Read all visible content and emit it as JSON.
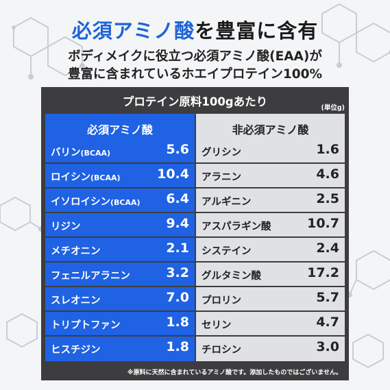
{
  "headline": {
    "accent": "必須アミノ酸",
    "rest": "を豊富に含有"
  },
  "subline_1": "ボディメイクに役立つ必須アミノ酸(EAA)が",
  "subline_2": "豊富に含まれているホエイプロテイン100%",
  "panel": {
    "title": "プロテイン原料100gあたり",
    "unit": "(単位g)",
    "footnote": "※原料に天然に含まれているアミノ酸です。添加したものではございません。"
  },
  "essential": {
    "heading": "必須アミノ酸",
    "rows": [
      {
        "name": "バリン",
        "suffix": "(BCAA)",
        "value": "5.6"
      },
      {
        "name": "ロイシン",
        "suffix": "(BCAA)",
        "value": "10.4"
      },
      {
        "name": "イソロイシン",
        "suffix": "(BCAA)",
        "value": "6.4"
      },
      {
        "name": "リジン",
        "suffix": "",
        "value": "9.4"
      },
      {
        "name": "メチオニン",
        "suffix": "",
        "value": "2.1"
      },
      {
        "name": "フェニルアラニン",
        "suffix": "",
        "value": "3.2"
      },
      {
        "name": "スレオニン",
        "suffix": "",
        "value": "7.0"
      },
      {
        "name": "トリプトファン",
        "suffix": "",
        "value": "1.8"
      },
      {
        "name": "ヒスチジン",
        "suffix": "",
        "value": "1.8"
      }
    ]
  },
  "nonessential": {
    "heading": "非必須アミノ酸",
    "rows": [
      {
        "name": "グリシン",
        "value": "1.6"
      },
      {
        "name": "アラニン",
        "value": "4.6"
      },
      {
        "name": "アルギニン",
        "value": "2.5"
      },
      {
        "name": "アスパラギン酸",
        "value": "10.7"
      },
      {
        "name": "システイン",
        "value": "2.4"
      },
      {
        "name": "グルタミン酸",
        "value": "17.2"
      },
      {
        "name": "プロリン",
        "value": "5.7"
      },
      {
        "name": "セリン",
        "value": "4.7"
      },
      {
        "name": "チロシン",
        "value": "3.0"
      }
    ]
  },
  "colors": {
    "accent_blue": "#1e63d6",
    "column_blue": "#1f62e3",
    "panel_dark": "#3d3d3f",
    "column_gray": "#dfe1e5"
  }
}
